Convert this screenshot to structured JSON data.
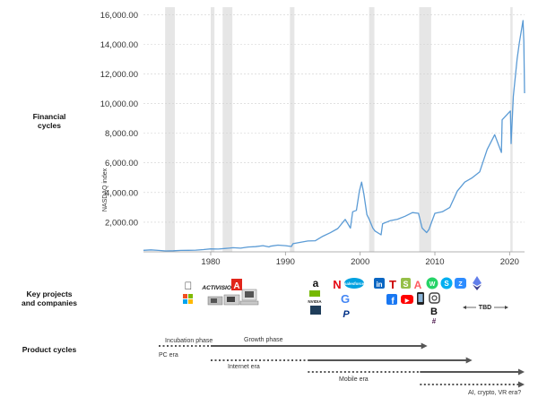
{
  "sections": {
    "financial": [
      "Financial",
      "cycles"
    ],
    "projects": [
      "Key projects",
      "and companies"
    ],
    "product": "Product cycles"
  },
  "chart_data": {
    "type": "line",
    "title": "",
    "xlabel": "",
    "ylabel": "NASDAQ index",
    "xlim": [
      1971,
      2022
    ],
    "ylim": [
      0,
      16500
    ],
    "yticks": [
      2000,
      4000,
      6000,
      8000,
      10000,
      12000,
      14000,
      16000
    ],
    "ytick_labels": [
      "2,000.00",
      "4,000.00",
      "6,000.00",
      "8,000.00",
      "10,000.00",
      "12,000.00",
      "14,000.00",
      "16,000.00"
    ],
    "xticks": [
      1980,
      1990,
      2000,
      2010,
      2020
    ],
    "xtick_labels": [
      "1980",
      "1990",
      "2000",
      "2010",
      "2020"
    ],
    "grid": true,
    "line_color": "#5b9bd5",
    "recession_color": "#e6e6e6",
    "recessions": [
      [
        1973.9,
        1975.2
      ],
      [
        1980.0,
        1980.5
      ],
      [
        1981.6,
        1982.9
      ],
      [
        1990.6,
        1991.2
      ],
      [
        2001.2,
        2001.9
      ],
      [
        2007.9,
        2009.5
      ],
      [
        2020.1,
        2020.4
      ]
    ],
    "series": [
      {
        "x": [
          1971,
          1972,
          1973,
          1974,
          1975,
          1976,
          1977,
          1978,
          1979,
          1980,
          1981,
          1982,
          1983,
          1984,
          1985,
          1986,
          1987,
          1987.8,
          1988,
          1989,
          1990,
          1990.8,
          1991,
          1992,
          1993,
          1994,
          1995,
          1996,
          1997,
          1998,
          1998.7,
          1999,
          1999.5,
          1999.9,
          2000.2,
          2000.5,
          2000.9,
          2001.2,
          2001.7,
          2002,
          2002.8,
          2003,
          2004,
          2005,
          2006,
          2007,
          2007.8,
          2008.3,
          2008.9,
          2009.2,
          2010,
          2011,
          2012,
          2013,
          2014,
          2015,
          2016,
          2017,
          2018,
          2018.9,
          2019,
          2020.1,
          2020.2,
          2020.5,
          2021,
          2021.3,
          2021.8,
          2021.9,
          2022
        ],
        "y": [
          105,
          130,
          95,
          60,
          75,
          95,
          105,
          115,
          150,
          200,
          190,
          230,
          280,
          250,
          325,
          350,
          420,
          330,
          380,
          455,
          420,
          360,
          550,
          640,
          730,
          750,
          1050,
          1290,
          1570,
          2190,
          1600,
          2700,
          2800,
          4100,
          4700,
          3900,
          2500,
          2200,
          1600,
          1400,
          1150,
          1900,
          2100,
          2200,
          2400,
          2650,
          2600,
          1600,
          1300,
          1500,
          2600,
          2700,
          3000,
          4100,
          4700,
          5000,
          5400,
          6900,
          7900,
          6700,
          8900,
          9500,
          7300,
          10500,
          13000,
          14100,
          15600,
          14200,
          10700
        ]
      }
    ]
  },
  "logos": [
    {
      "name": "apple",
      "text": "",
      "color": "#222222"
    },
    {
      "name": "activision",
      "text": "ACTIVISION",
      "color": "#111111"
    },
    {
      "name": "adobe",
      "text": "A",
      "color": "#e1251b"
    },
    {
      "name": "microsoft",
      "text": "",
      "color": "#f25022"
    },
    {
      "name": "amazon",
      "text": "a",
      "color": "#111111"
    },
    {
      "name": "netflix",
      "text": "N",
      "color": "#e50914"
    },
    {
      "name": "salesforce",
      "text": "salesforce",
      "color": "#00a1e0"
    },
    {
      "name": "nvidia",
      "text": "NVIDIA",
      "color": "#76b900"
    },
    {
      "name": "google",
      "text": "G",
      "color": "#4285f4"
    },
    {
      "name": "paypal",
      "text": "P",
      "color": "#003087"
    },
    {
      "name": "linkedin",
      "text": "in",
      "color": "#0a66c2"
    },
    {
      "name": "tesla",
      "text": "T",
      "color": "#cc0000"
    },
    {
      "name": "shopify",
      "text": "S",
      "color": "#95bf47"
    },
    {
      "name": "airbnb",
      "text": "A",
      "color": "#ff5a5f"
    },
    {
      "name": "whatsapp",
      "text": "W",
      "color": "#25d366"
    },
    {
      "name": "skype",
      "text": "S",
      "color": "#00aff0"
    },
    {
      "name": "zoom",
      "text": "Z",
      "color": "#2d8cff"
    },
    {
      "name": "ethereum",
      "text": "E",
      "color": "#627eea"
    },
    {
      "name": "facebook",
      "text": "f",
      "color": "#1877f2"
    },
    {
      "name": "youtube",
      "text": "▶",
      "color": "#ff0000"
    },
    {
      "name": "bitcoin",
      "text": "B",
      "color": "#111111"
    },
    {
      "name": "slack",
      "text": "#",
      "color": "#4a154b"
    }
  ],
  "tbd_label": "TBD",
  "phase_labels": {
    "incubation": "Incubation phase",
    "growth": "Growth phase"
  },
  "eras": [
    {
      "name": "PC era",
      "dotted": [
        1970,
        1980
      ],
      "solid": [
        1980,
        2009
      ]
    },
    {
      "name": "Internet era",
      "dotted": [
        1980,
        1993
      ],
      "solid": [
        1993,
        2015
      ]
    },
    {
      "name": "Mobile era",
      "dotted": [
        1993,
        2008
      ],
      "solid": [
        2008,
        2022
      ]
    },
    {
      "name": "AI, crypto, VR era?",
      "dotted": [
        2008,
        2021
      ],
      "solid": [
        2021,
        2022
      ]
    }
  ]
}
